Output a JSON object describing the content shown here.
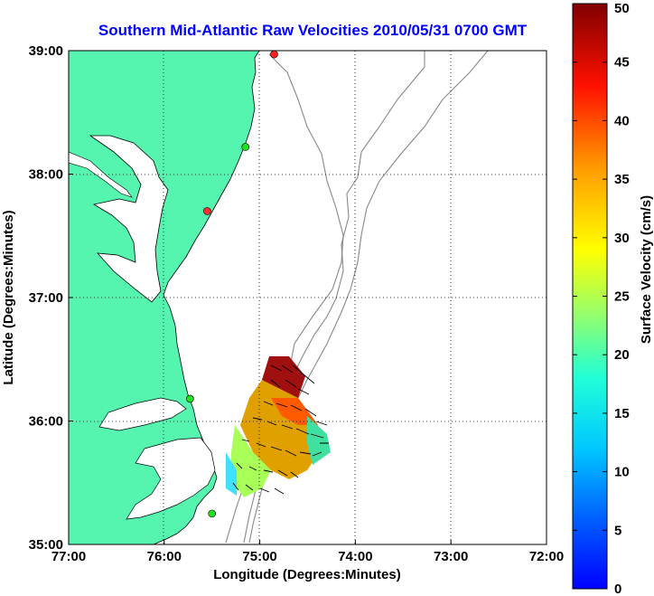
{
  "title": "Southern Mid-Atlantic Raw Velocities 2010/05/31 0700 GMT",
  "title_color": "#0000ff",
  "map": {
    "xlabel": "Longitude (Degrees:Minutes)",
    "ylabel": "Latitude (Degrees:Minutes)",
    "lon_range": [
      -77,
      -72
    ],
    "lat_range": [
      35,
      39
    ],
    "x_ticks": [
      "77:00",
      "76:00",
      "75:00",
      "74:00",
      "73:00",
      "72:00"
    ],
    "y_ticks": [
      "35:00",
      "36:00",
      "37:00",
      "38:00",
      "39:00"
    ],
    "grid": "dotted",
    "land_color": "#55f5b0",
    "stations": [
      {
        "lon": -74.85,
        "lat": 38.97,
        "color": "#ff2020"
      },
      {
        "lon": -75.15,
        "lat": 38.22,
        "color": "#20e020"
      },
      {
        "lon": -75.55,
        "lat": 37.7,
        "color": "#ff3030"
      },
      {
        "lon": -75.73,
        "lat": 36.18,
        "color": "#20e020"
      },
      {
        "lon": -75.5,
        "lat": 35.25,
        "color": "#20e020"
      }
    ]
  },
  "colorbar": {
    "label": "Surface Velocity (cm/s)",
    "min": 0,
    "max": 50,
    "ticks": [
      "0",
      "5",
      "10",
      "15",
      "20",
      "25",
      "30",
      "35",
      "40",
      "45",
      "50"
    ]
  }
}
